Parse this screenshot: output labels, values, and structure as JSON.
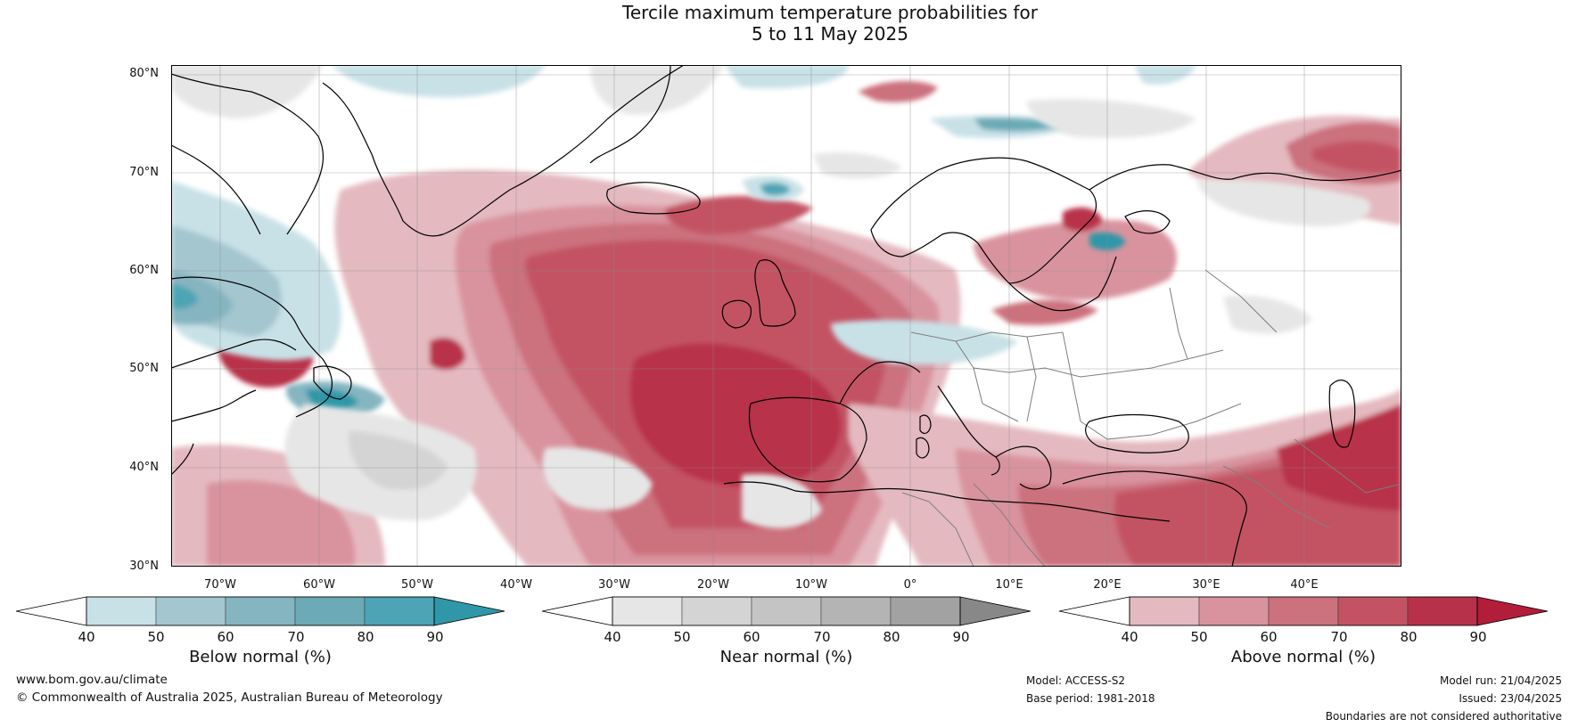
{
  "title": {
    "line1": "Tercile maximum temperature probabilities for",
    "line2": "5 to 11 May 2025"
  },
  "axes": {
    "lat_labels": [
      "80°N",
      "70°N",
      "60°N",
      "50°N",
      "40°N",
      "30°N"
    ],
    "lon_labels": [
      "70°W",
      "60°W",
      "50°W",
      "40°W",
      "30°W",
      "20°W",
      "10°W",
      "0°",
      "10°E",
      "20°E",
      "30°E",
      "40°E"
    ],
    "lat_range": [
      30,
      81
    ],
    "lon_range": [
      -77,
      48
    ],
    "grid": true
  },
  "map": {
    "region": "North Atlantic and Europe",
    "layers": [
      "coastlines",
      "country-boundaries",
      "graticule",
      "probability-shading"
    ],
    "coast_color": "#000000",
    "boundary_color": "#808080"
  },
  "colorbars": [
    {
      "name": "below",
      "label": "Below normal (%)",
      "ticks": [
        "40",
        "50",
        "60",
        "70",
        "80",
        "90"
      ],
      "colors": [
        "#ffffff",
        "#c8e1e7",
        "#a4c6cf",
        "#85b5c1",
        "#6baab6",
        "#4da4b5",
        "#2f97a8"
      ]
    },
    {
      "name": "near",
      "label": "Near normal (%)",
      "ticks": [
        "40",
        "50",
        "60",
        "70",
        "80",
        "90"
      ],
      "colors": [
        "#ffffff",
        "#e6e6e6",
        "#d4d4d4",
        "#c4c4c4",
        "#b4b4b4",
        "#a2a2a2",
        "#888888"
      ]
    },
    {
      "name": "above",
      "label": "Above normal (%)",
      "ticks": [
        "40",
        "50",
        "60",
        "70",
        "80",
        "90"
      ],
      "colors": [
        "#ffffff",
        "#e4b9c0",
        "#d9939e",
        "#cc717e",
        "#c35363",
        "#b8314a",
        "#b21d3a"
      ]
    }
  ],
  "footer": {
    "website": "www.bom.gov.au/climate",
    "copyright": "© Commonwealth of Australia 2025, Australian Bureau of Meteorology",
    "model": "Model: ACCESS-S2",
    "base_period": "Base period: 1981-2018",
    "model_run": "Model run: 21/04/2025",
    "issued": "Issued: 23/04/2025",
    "disclaimer": "Boundaries are not considered authoritative"
  }
}
